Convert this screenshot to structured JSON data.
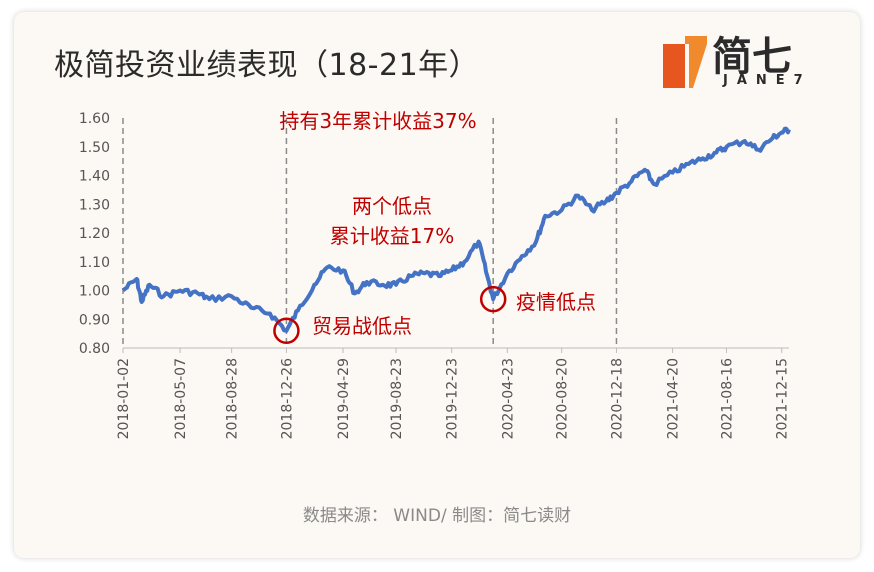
{
  "header": {
    "title": "极简投资业绩表现（18-21年）"
  },
  "logo": {
    "name": "简七",
    "sub": "JANE7",
    "colors": [
      "#e8561f",
      "#f08a2c"
    ]
  },
  "footer": {
    "source": "数据来源： WIND/ 制图：简七读财"
  },
  "chart_data": {
    "type": "line",
    "title": "",
    "xlabel": "",
    "ylabel": "",
    "ylim": [
      0.8,
      1.6
    ],
    "yticks": [
      "0.80",
      "0.90",
      "1.00",
      "1.10",
      "1.20",
      "1.30",
      "1.40",
      "1.50",
      "1.60"
    ],
    "xticks": [
      "2018-01-02",
      "2018-05-07",
      "2018-08-28",
      "2018-12-26",
      "2019-04-29",
      "2019-08-23",
      "2019-12-23",
      "2020-04-23",
      "2020-08-20",
      "2020-12-18",
      "2021-04-20",
      "2021-08-16",
      "2021-12-15"
    ],
    "line_color": "#4472c4",
    "series": [
      {
        "name": "",
        "x": [
          "2018-01-02",
          "2018-02-01",
          "2018-02-12",
          "2018-03-01",
          "2018-04-01",
          "2018-05-07",
          "2018-06-15",
          "2018-07-10",
          "2018-08-28",
          "2018-10-10",
          "2018-11-20",
          "2018-12-26",
          "2019-01-20",
          "2019-02-25",
          "2019-03-25",
          "2019-04-29",
          "2019-05-25",
          "2019-06-20",
          "2019-07-25",
          "2019-08-23",
          "2019-09-25",
          "2019-10-25",
          "2019-11-25",
          "2019-12-23",
          "2020-01-20",
          "2020-02-20",
          "2020-03-10",
          "2020-03-23",
          "2020-04-23",
          "2020-05-25",
          "2020-06-25",
          "2020-07-15",
          "2020-08-20",
          "2020-09-25",
          "2020-10-25",
          "2020-11-25",
          "2020-12-18",
          "2021-01-20",
          "2021-02-18",
          "2021-03-10",
          "2021-04-20",
          "2021-05-25",
          "2021-06-25",
          "2021-07-25",
          "2021-08-16",
          "2021-09-25",
          "2021-10-25",
          "2021-11-25",
          "2021-12-15",
          "2021-12-31"
        ],
        "values": [
          1.0,
          1.04,
          0.96,
          1.02,
          0.98,
          1.0,
          0.99,
          0.97,
          0.98,
          0.94,
          0.92,
          0.86,
          0.93,
          1.02,
          1.08,
          1.07,
          0.99,
          1.03,
          1.02,
          1.02,
          1.05,
          1.06,
          1.05,
          1.07,
          1.1,
          1.17,
          1.05,
          0.97,
          1.06,
          1.12,
          1.17,
          1.26,
          1.28,
          1.33,
          1.28,
          1.31,
          1.34,
          1.38,
          1.42,
          1.37,
          1.41,
          1.44,
          1.46,
          1.48,
          1.5,
          1.52,
          1.49,
          1.53,
          1.55,
          1.56
        ]
      }
    ],
    "annotations": [
      {
        "text": "持有3年累计收益37%",
        "kind": "label"
      },
      {
        "text": "两个低点",
        "kind": "label"
      },
      {
        "text": "累计收益17%",
        "kind": "label"
      },
      {
        "text": "贸易战低点",
        "kind": "marker",
        "x": "2018-12-26",
        "y": 0.86
      },
      {
        "text": "疫情低点",
        "kind": "marker",
        "x": "2020-03-23",
        "y": 0.97
      }
    ],
    "vlines": [
      "2018-01-02",
      "2018-12-26",
      "2020-03-23",
      "2020-12-18"
    ],
    "grid": false
  }
}
